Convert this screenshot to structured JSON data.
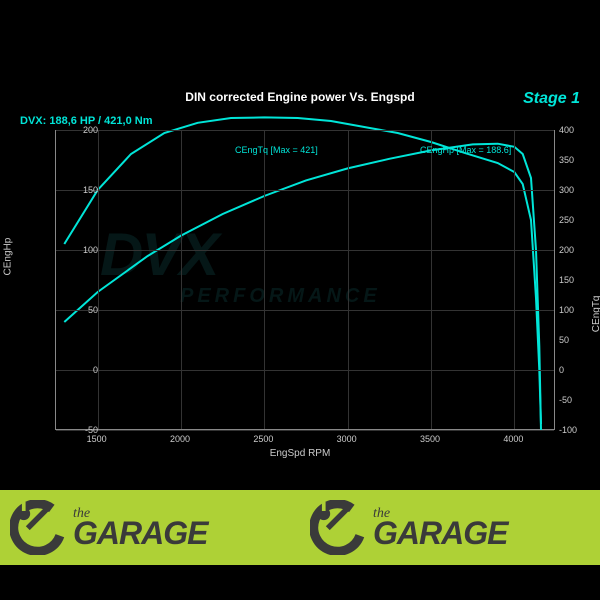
{
  "chart": {
    "title": "DIN corrected Engine power Vs. Engspd",
    "stage": "Stage 1",
    "summary": "DVX: 188,6 HP / 421,0 Nm",
    "xlabel": "EngSpd RPM",
    "ylabel_left": "CEngHp",
    "ylabel_right": "CEngTq",
    "background_color": "#000000",
    "grid_color": "#333333",
    "axis_color": "#888888",
    "line_color": "#00e5d8",
    "line_width": 2,
    "text_color": "#cccccc",
    "accent_color": "#00e5d8",
    "xlim": [
      1250,
      4250
    ],
    "ylim_left": [
      -50,
      200
    ],
    "ylim_right": [
      -100,
      400
    ],
    "xticks": [
      1500,
      2000,
      2500,
      3000,
      3500,
      4000
    ],
    "yticks_left": [
      -50,
      0,
      50,
      100,
      150,
      200
    ],
    "yticks_right": [
      -100,
      -50,
      0,
      50,
      100,
      150,
      200,
      250,
      300,
      350,
      400
    ],
    "tick_fontsize": 9,
    "label_fontsize": 10,
    "title_fontsize": 12,
    "annotations": {
      "tq": "CEngTq [Max = 421]",
      "hp": "CEngHp [Max = 188.6]"
    },
    "hp_series": {
      "rpm": [
        1300,
        1500,
        1800,
        2000,
        2250,
        2500,
        2750,
        3000,
        3250,
        3500,
        3750,
        3900,
        4000,
        4050,
        4100,
        4130,
        4150,
        4160
      ],
      "value": [
        40,
        65,
        95,
        112,
        130,
        145,
        158,
        168,
        176,
        183,
        188,
        188.6,
        186,
        180,
        160,
        100,
        20,
        -50
      ]
    },
    "tq_series": {
      "rpm": [
        1300,
        1500,
        1700,
        1900,
        2100,
        2300,
        2500,
        2700,
        2900,
        3100,
        3300,
        3500,
        3700,
        3900,
        4000,
        4050,
        4100,
        4130,
        4150,
        4160
      ],
      "value": [
        210,
        300,
        360,
        395,
        412,
        420,
        421,
        420,
        415,
        405,
        395,
        380,
        362,
        345,
        330,
        310,
        250,
        120,
        0,
        -90
      ]
    },
    "watermark": {
      "main": "DVX",
      "sub": "PERFORMANCE"
    }
  },
  "footer": {
    "background_color": "#aed136",
    "text_color": "#3a3a3a",
    "logo_text_small": "the",
    "logo_text_large": "GARAGE"
  }
}
